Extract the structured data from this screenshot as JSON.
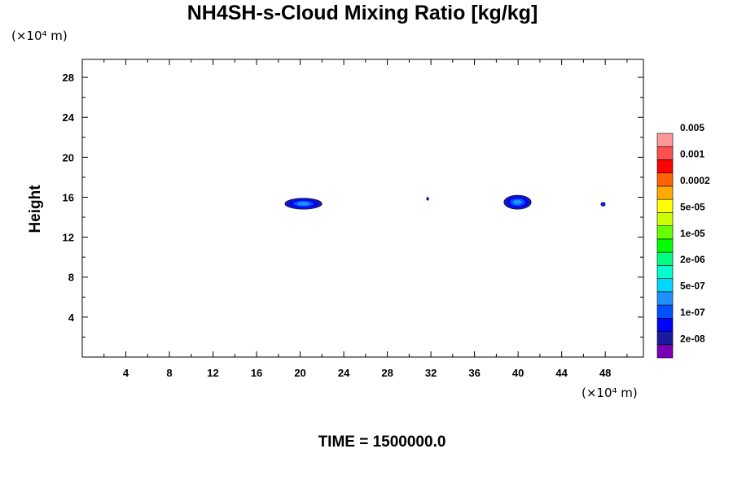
{
  "chart_data": {
    "type": "heatmap",
    "title": "NH4SH-s-Cloud Mixing Ratio [kg/kg]",
    "xlabel": "",
    "ylabel": "Height",
    "x_unit": "(×10⁴ m)",
    "y_unit": "(×10⁴ m)",
    "xlim": [
      0,
      51.5
    ],
    "ylim": [
      0,
      29.8
    ],
    "x_ticks": [
      4,
      8,
      12,
      16,
      20,
      24,
      28,
      32,
      36,
      40,
      44,
      48
    ],
    "y_ticks": [
      4,
      8,
      12,
      16,
      20,
      24,
      28
    ],
    "x_tick_labels": [
      "4",
      "8",
      "12",
      "16",
      "20",
      "24",
      "28",
      "32",
      "36",
      "40",
      "44",
      "48"
    ],
    "y_tick_labels": [
      "4",
      "8",
      "12",
      "16",
      "20",
      "24",
      "28"
    ],
    "time_label": "TIME = 1500000.0",
    "colorbar": {
      "colors": [
        "#7a00b4",
        "#1a1a9e",
        "#0000ff",
        "#0050ff",
        "#1e90ff",
        "#00d7ff",
        "#00ffcc",
        "#00ff80",
        "#00ff00",
        "#66ff00",
        "#ccff00",
        "#ffff00",
        "#ffaa00",
        "#ff6400",
        "#ff0000",
        "#ff5050",
        "#ff9999"
      ],
      "labels": [
        "2e-08",
        "1e-07",
        "5e-07",
        "2e-06",
        "1e-05",
        "5e-05",
        "0.0002",
        "0.001",
        "0.005"
      ]
    },
    "features": [
      {
        "x_range": [
          18.6,
          22.0
        ],
        "y_range": [
          14.8,
          15.9
        ],
        "max_level": 4
      },
      {
        "x_range": [
          31.6,
          31.8
        ],
        "y_range": [
          15.7,
          16.0
        ],
        "max_level": 2
      },
      {
        "x_range": [
          38.7,
          41.2
        ],
        "y_range": [
          14.8,
          16.2
        ],
        "max_level": 4
      },
      {
        "x_range": [
          47.6,
          48.0
        ],
        "y_range": [
          15.1,
          15.5
        ],
        "max_level": 3
      }
    ]
  }
}
